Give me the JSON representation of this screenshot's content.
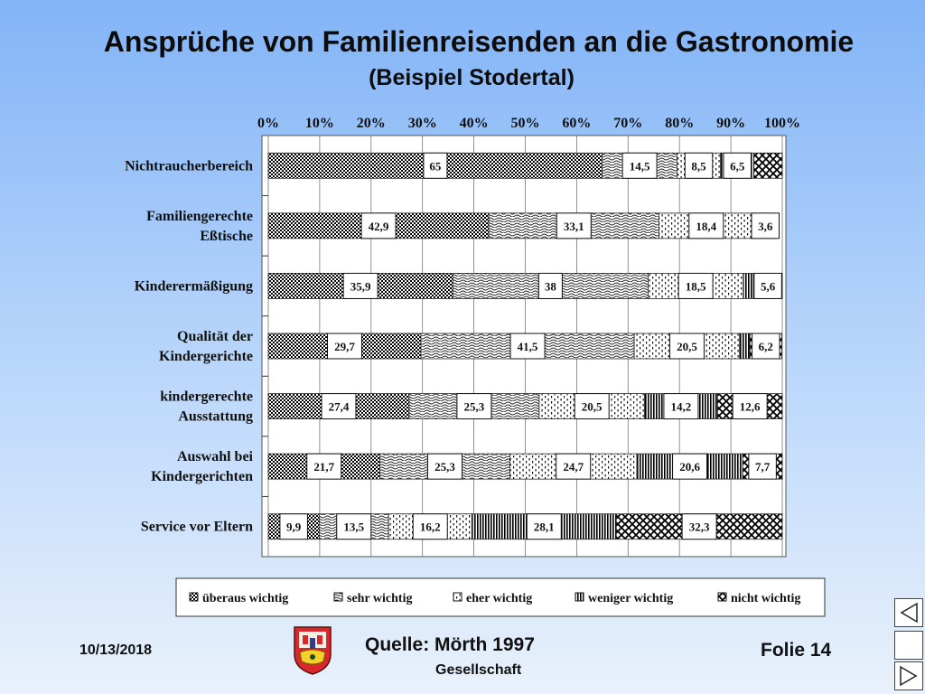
{
  "slide": {
    "title": "Ansprüche von Familienreisenden an die Gastronomie",
    "subtitle": "(Beispiel Stodertal)",
    "date": "10/13/2018",
    "source": "Quelle: Mörth 1997",
    "society": "Gesellschaft",
    "slide_number": "Folie 14"
  },
  "chart_data": {
    "type": "bar",
    "orientation": "horizontal",
    "stacked": "percent",
    "categories": [
      [
        "Nichtraucherbereich"
      ],
      [
        "Familiengerechte",
        "Eßtische"
      ],
      [
        "Kinderermäßigung"
      ],
      [
        "Qualität der",
        "Kindergerichte"
      ],
      [
        "kindergerechte",
        "Ausstattung"
      ],
      [
        "Auswahl bei",
        "Kindergerichten"
      ],
      [
        "Service vor Eltern"
      ]
    ],
    "x_ticks": [
      "0%",
      "10%",
      "20%",
      "30%",
      "40%",
      "50%",
      "60%",
      "70%",
      "80%",
      "90%",
      "100%"
    ],
    "xlim": [
      0,
      100
    ],
    "grid": true,
    "legend_position": "bottom",
    "series": [
      {
        "name": "überaus wichtig",
        "values": [
          65,
          42.9,
          35.9,
          29.7,
          27.4,
          21.7,
          9.9
        ],
        "labels": [
          "65",
          "42,9",
          "35,9",
          "29,7",
          "27,4",
          "21,7",
          "9,9"
        ]
      },
      {
        "name": "sehr wichtig",
        "values": [
          14.5,
          33.1,
          38,
          41.5,
          25.3,
          25.3,
          13.5
        ],
        "labels": [
          "14,5",
          "33,1",
          "38",
          "41,5",
          "25,3",
          "25,3",
          "13,5"
        ]
      },
      {
        "name": "eher wichtig",
        "values": [
          8.5,
          18.4,
          18.5,
          20.5,
          20.5,
          24.7,
          16.2
        ],
        "labels": [
          "8,5",
          "18,4",
          "18,5",
          "20,5",
          "20,5",
          "24,7",
          "16,2"
        ]
      },
      {
        "name": "weniger wichtig",
        "values": [
          6.5,
          0.5,
          2,
          2,
          14.2,
          20.6,
          28.1
        ],
        "labels": [
          "6,5",
          "",
          "",
          "",
          "14,2",
          "20,6",
          "28,1"
        ]
      },
      {
        "name": "nicht wichtig",
        "values": [
          5.5,
          3.6,
          5.6,
          6.2,
          12.6,
          7.7,
          32.3
        ],
        "labels": [
          "",
          "3,6",
          "5,6",
          "6,2",
          "12,6",
          "7,7",
          "32,3"
        ]
      }
    ]
  }
}
